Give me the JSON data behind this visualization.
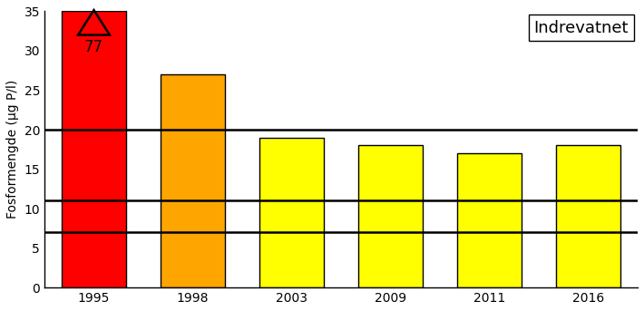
{
  "categories": [
    "1995",
    "1998",
    "2003",
    "2009",
    "2011",
    "2016"
  ],
  "values": [
    35,
    27,
    19,
    18,
    17,
    18
  ],
  "bar_colors": [
    "#ff0000",
    "#ffa500",
    "#ffff00",
    "#ffff00",
    "#ffff00",
    "#ffff00"
  ],
  "bar_edgecolors": [
    "#000000",
    "#000000",
    "#000000",
    "#000000",
    "#000000",
    "#000000"
  ],
  "hlines": [
    7,
    11,
    20
  ],
  "hline_color": "#000000",
  "hline_lw": 1.8,
  "ylabel": "Fosformengde (µg P/l)",
  "title": "Indrevatnet",
  "ylim": [
    0,
    35
  ],
  "yticks": [
    0,
    5,
    10,
    15,
    20,
    25,
    30,
    35
  ],
  "annotation_value": "77",
  "bg_color": "#ffffff",
  "title_fontsize": 13,
  "ylabel_fontsize": 10,
  "tick_fontsize": 10,
  "annotation_fontsize": 12,
  "bar_width": 0.65,
  "figsize": [
    7.1,
    3.43
  ],
  "dpi": 100
}
